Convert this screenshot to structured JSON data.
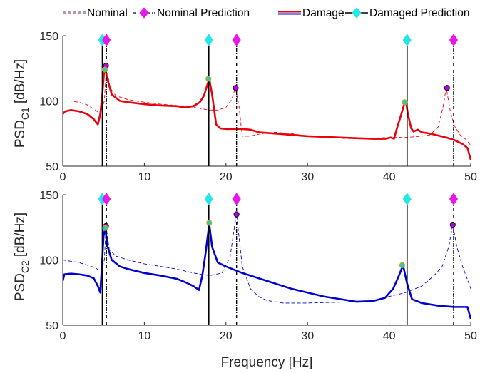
{
  "legend": {
    "nominal": "Nominal",
    "nominal_prediction": "Nominal Prediction",
    "damage": "Damage",
    "damaged_prediction": "Damaged Prediction"
  },
  "colors": {
    "damage_top": "#e8000b",
    "nominal_top": "#e8000b",
    "damage_bottom": "#0000d0",
    "nominal_bottom": "#0000d0",
    "nominal_prediction": "#e816e8",
    "damaged_prediction": "#26e6e6",
    "peak_nominal_fill": "#b400e6",
    "peak_damage_fill": "#2fc7b7",
    "peak_damage_edge": "#d9a300"
  },
  "chart_data": [
    {
      "type": "line",
      "ylabel_main": "PSD",
      "ylabel_sub": "C1",
      "ylabel_unit": "[dB/Hz]",
      "xlabel": "",
      "xlim": [
        0,
        50
      ],
      "ylim": [
        50,
        150
      ],
      "xticks": [
        0,
        10,
        20,
        30,
        40,
        50
      ],
      "yticks": [
        50,
        100,
        150
      ],
      "grid": false,
      "series": [
        {
          "name": "Damage",
          "style": "solid",
          "points": [
            [
              0,
              90
            ],
            [
              0.3,
              92
            ],
            [
              1,
              93
            ],
            [
              2,
              92
            ],
            [
              3,
              90
            ],
            [
              3.8,
              86
            ],
            [
              4.3,
              82
            ],
            [
              4.6,
              90
            ],
            [
              4.85,
              105
            ],
            [
              5.05,
              121
            ],
            [
              5.2,
              124
            ],
            [
              5.5,
              116
            ],
            [
              6,
              105
            ],
            [
              7,
              100
            ],
            [
              8,
              99
            ],
            [
              10,
              97.5
            ],
            [
              12,
              96.5
            ],
            [
              14,
              96
            ],
            [
              15,
              95
            ],
            [
              16,
              96
            ],
            [
              16.8,
              99
            ],
            [
              17.3,
              104
            ],
            [
              17.7,
              112
            ],
            [
              17.95,
              117
            ],
            [
              18.3,
              105
            ],
            [
              18.8,
              82
            ],
            [
              19.3,
              79
            ],
            [
              20,
              78.5
            ],
            [
              22,
              78.5
            ],
            [
              23,
              78
            ],
            [
              24,
              76
            ],
            [
              26,
              75
            ],
            [
              28,
              74
            ],
            [
              30,
              73
            ],
            [
              32,
              72.5
            ],
            [
              34,
              72
            ],
            [
              36,
              71.5
            ],
            [
              38,
              71
            ],
            [
              39.5,
              71
            ],
            [
              40.2,
              72
            ],
            [
              40.6,
              71
            ],
            [
              41,
              80
            ],
            [
              41.5,
              90
            ],
            [
              41.9,
              99
            ],
            [
              42.1,
              98
            ],
            [
              42.3,
              90
            ],
            [
              42.7,
              79
            ],
            [
              43,
              76.5
            ],
            [
              43.5,
              78
            ],
            [
              44,
              76
            ],
            [
              45,
              75
            ],
            [
              46,
              73.5
            ],
            [
              47,
              72
            ],
            [
              48,
              70
            ],
            [
              49,
              67
            ],
            [
              49.6,
              64
            ],
            [
              50,
              55
            ]
          ]
        },
        {
          "name": "Nominal",
          "style": "dashed",
          "points": [
            [
              0,
              100
            ],
            [
              1,
              100
            ],
            [
              2,
              99
            ],
            [
              3,
              97
            ],
            [
              4,
              93
            ],
            [
              4.6,
              90
            ],
            [
              5.1,
              100
            ],
            [
              5.35,
              127
            ],
            [
              5.8,
              110
            ],
            [
              6.5,
              104
            ],
            [
              8,
              101
            ],
            [
              10,
              99
            ],
            [
              12,
              97.5
            ],
            [
              14,
              96.5
            ],
            [
              16,
              95.5
            ],
            [
              17,
              94
            ],
            [
              18,
              93
            ],
            [
              19,
              93
            ],
            [
              20,
              95
            ],
            [
              20.7,
              101
            ],
            [
              21.15,
              110
            ],
            [
              21.6,
              96
            ],
            [
              22,
              73
            ],
            [
              23,
              73
            ],
            [
              24,
              74.5
            ],
            [
              25,
              75.5
            ],
            [
              26,
              76
            ],
            [
              28,
              75
            ],
            [
              30,
              73
            ],
            [
              32,
              72
            ],
            [
              34,
              71.5
            ],
            [
              36,
              71
            ],
            [
              38,
              71.5
            ],
            [
              40,
              72
            ],
            [
              42,
              72
            ],
            [
              44,
              73
            ],
            [
              45,
              74
            ],
            [
              46,
              80
            ],
            [
              46.6,
              95
            ],
            [
              47,
              110
            ],
            [
              47.5,
              92
            ],
            [
              48,
              81
            ],
            [
              48.7,
              74
            ],
            [
              49.5,
              70
            ],
            [
              50,
              66
            ]
          ]
        }
      ],
      "nominal_prediction_freqs": [
        5.35,
        21.3,
        47.9
      ],
      "damaged_prediction_freqs": [
        4.85,
        17.9,
        42.2
      ],
      "nominal_peaks": [
        [
          5.3,
          127
        ],
        [
          21.2,
          110
        ],
        [
          47.1,
          110
        ]
      ],
      "damage_peaks": [
        [
          5.15,
          124
        ],
        [
          17.85,
          117
        ],
        [
          41.9,
          99
        ]
      ]
    },
    {
      "type": "line",
      "ylabel_main": "PSD",
      "ylabel_sub": "C2",
      "ylabel_unit": "[dB/Hz]",
      "xlabel": "Frequency [Hz]",
      "xlim": [
        0,
        50
      ],
      "ylim": [
        50,
        150
      ],
      "xticks": [
        0,
        10,
        20,
        30,
        40,
        50
      ],
      "yticks": [
        50,
        100,
        150
      ],
      "grid": false,
      "series": [
        {
          "name": "Damage",
          "style": "solid",
          "points": [
            [
              0,
              84
            ],
            [
              0.2,
              89
            ],
            [
              1,
              89.5
            ],
            [
              2,
              89
            ],
            [
              3,
              88
            ],
            [
              3.8,
              86
            ],
            [
              4.3,
              80
            ],
            [
              4.6,
              75
            ],
            [
              4.8,
              96
            ],
            [
              5.0,
              118
            ],
            [
              5.2,
              125
            ],
            [
              5.5,
              110
            ],
            [
              6,
              100
            ],
            [
              7,
              95
            ],
            [
              8,
              93
            ],
            [
              10,
              90
            ],
            [
              12,
              88
            ],
            [
              14,
              85.5
            ],
            [
              15,
              83
            ],
            [
              16,
              80
            ],
            [
              16.7,
              77
            ],
            [
              17.1,
              88
            ],
            [
              17.5,
              105
            ],
            [
              17.8,
              120
            ],
            [
              17.95,
              128
            ],
            [
              18.3,
              110
            ],
            [
              19,
              98
            ],
            [
              20,
              95
            ],
            [
              22,
              90
            ],
            [
              24,
              86
            ],
            [
              26,
              82
            ],
            [
              28,
              78
            ],
            [
              30,
              75
            ],
            [
              32,
              72
            ],
            [
              34,
              70
            ],
            [
              36,
              68
            ],
            [
              38,
              68.5
            ],
            [
              39.5,
              71
            ],
            [
              40.5,
              78
            ],
            [
              41.2,
              88
            ],
            [
              41.7,
              96
            ],
            [
              42.2,
              82
            ],
            [
              42.8,
              70
            ],
            [
              44,
              67
            ],
            [
              46,
              65
            ],
            [
              48,
              64
            ],
            [
              49,
              64
            ],
            [
              49.6,
              64
            ],
            [
              50,
              55
            ]
          ]
        },
        {
          "name": "Nominal",
          "style": "dashed",
          "points": [
            [
              0,
              100
            ],
            [
              1,
              99
            ],
            [
              2,
              98
            ],
            [
              3,
              96
            ],
            [
              4,
              94
            ],
            [
              4.7,
              91
            ],
            [
              5.1,
              100
            ],
            [
              5.3,
              126
            ],
            [
              5.7,
              108
            ],
            [
              6.5,
              103
            ],
            [
              8,
              100
            ],
            [
              10,
              97
            ],
            [
              12,
              95
            ],
            [
              14,
              93
            ],
            [
              16,
              90
            ],
            [
              18,
              88
            ],
            [
              19.5,
              90
            ],
            [
              20.5,
              102
            ],
            [
              21.1,
              128
            ],
            [
              21.3,
              135
            ],
            [
              21.6,
              118
            ],
            [
              22,
              95
            ],
            [
              23,
              78
            ],
            [
              24,
              72
            ],
            [
              25,
              69
            ],
            [
              27,
              67
            ],
            [
              30,
              67
            ],
            [
              33,
              67.5
            ],
            [
              36,
              68
            ],
            [
              38,
              69
            ],
            [
              40,
              72
            ],
            [
              42,
              75
            ],
            [
              44,
              80
            ],
            [
              45.5,
              88
            ],
            [
              46.5,
              95
            ],
            [
              47.3,
              110
            ],
            [
              47.8,
              127
            ],
            [
              48.3,
              110
            ],
            [
              49,
              95
            ],
            [
              49.6,
              85
            ],
            [
              50,
              78
            ]
          ]
        }
      ],
      "nominal_prediction_freqs": [
        5.35,
        21.3,
        47.9
      ],
      "damaged_prediction_freqs": [
        4.85,
        17.9,
        42.2
      ],
      "nominal_peaks": [
        [
          5.3,
          126
        ],
        [
          21.3,
          135
        ],
        [
          47.8,
          127
        ]
      ],
      "damage_peaks": [
        [
          5.2,
          124.5
        ],
        [
          17.95,
          128.5
        ],
        [
          41.6,
          96
        ]
      ]
    }
  ]
}
